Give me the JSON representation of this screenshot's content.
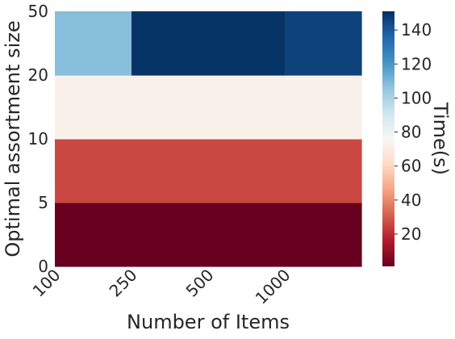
{
  "chart_data": {
    "type": "heatmap",
    "xlabel": "Number of Items",
    "ylabel": "Optimal assortment size",
    "x_tick_labels": [
      "100",
      "250",
      "500",
      "1000"
    ],
    "y_tick_labels": [
      "0",
      "5",
      "10",
      "20",
      "50"
    ],
    "rows_bottom_to_top": [
      "0–5",
      "5–10",
      "10–20",
      "20–50"
    ],
    "columns": 4,
    "values": [
      [
        1,
        1,
        1,
        1
      ],
      [
        26,
        26,
        26,
        26
      ],
      [
        72,
        72,
        72,
        72
      ],
      [
        108,
        150,
        150,
        146
      ]
    ],
    "colorbar": {
      "label": "Time(s)",
      "min": 1,
      "max": 151,
      "ticks": [
        20,
        40,
        60,
        80,
        100,
        120,
        140
      ],
      "colormap": "RdBu_r"
    }
  }
}
